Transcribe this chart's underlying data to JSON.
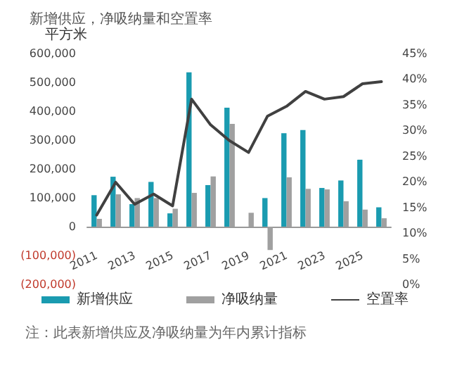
{
  "chart_data": {
    "type": "bar",
    "title": "新增供应，净吸纳量和空置率",
    "ylabel": "平方米",
    "categories": [
      "2011",
      null,
      "2013",
      null,
      "2015",
      null,
      "2017",
      null,
      "2019",
      null,
      "2021",
      null,
      "2023",
      null,
      "2025",
      null
    ],
    "series": [
      {
        "name": "新增供应",
        "color": "#1a9bb0",
        "values": [
          109000,
          173000,
          78000,
          155000,
          46000,
          535000,
          144000,
          412000,
          0,
          99000,
          324000,
          335000,
          134000,
          160000,
          232000,
          67000
        ]
      },
      {
        "name": "净吸纳量",
        "color": "#a0a0a0",
        "values": [
          27000,
          112000,
          99000,
          99000,
          62000,
          117000,
          174000,
          356000,
          48000,
          -81000,
          171000,
          131000,
          129000,
          88000,
          59000,
          29000
        ]
      },
      {
        "name": "空置率",
        "type": "line",
        "axis": "y2",
        "color": "#404040",
        "values": [
          13.5,
          19.9,
          15.6,
          17.6,
          15.3,
          36.1,
          31.1,
          28.0,
          25.7,
          32.8,
          34.7,
          37.6,
          36.1,
          36.6,
          39.1,
          39.5
        ]
      }
    ],
    "ylim": [
      -200000,
      600000
    ],
    "yticks": [
      {
        "value": -200000,
        "label": "(200,000)"
      },
      {
        "value": -100000,
        "label": "(100,000)"
      },
      {
        "value": 0,
        "label": "0"
      },
      {
        "value": 100000,
        "label": "100,000"
      },
      {
        "value": 200000,
        "label": "200,000"
      },
      {
        "value": 300000,
        "label": "300,000"
      },
      {
        "value": 400000,
        "label": "400,000"
      },
      {
        "value": 500000,
        "label": "500,000"
      },
      {
        "value": 600000,
        "label": "600,000"
      }
    ],
    "y2lim": [
      0,
      45
    ],
    "y2ticks": [
      {
        "value": 0,
        "label": "0%"
      },
      {
        "value": 5,
        "label": "5%"
      },
      {
        "value": 10,
        "label": "10%"
      },
      {
        "value": 15,
        "label": "15%"
      },
      {
        "value": 20,
        "label": "20%"
      },
      {
        "value": 25,
        "label": "25%"
      },
      {
        "value": 30,
        "label": "30%"
      },
      {
        "value": 35,
        "label": "35%"
      },
      {
        "value": 40,
        "label": "40%"
      },
      {
        "value": 45,
        "label": "45%"
      }
    ],
    "grid": false,
    "legend": "bottom",
    "marker": "none",
    "line_style": "solid",
    "annotations": [
      "注：此表新增供应及净吸纳量为年内累计指标"
    ]
  }
}
